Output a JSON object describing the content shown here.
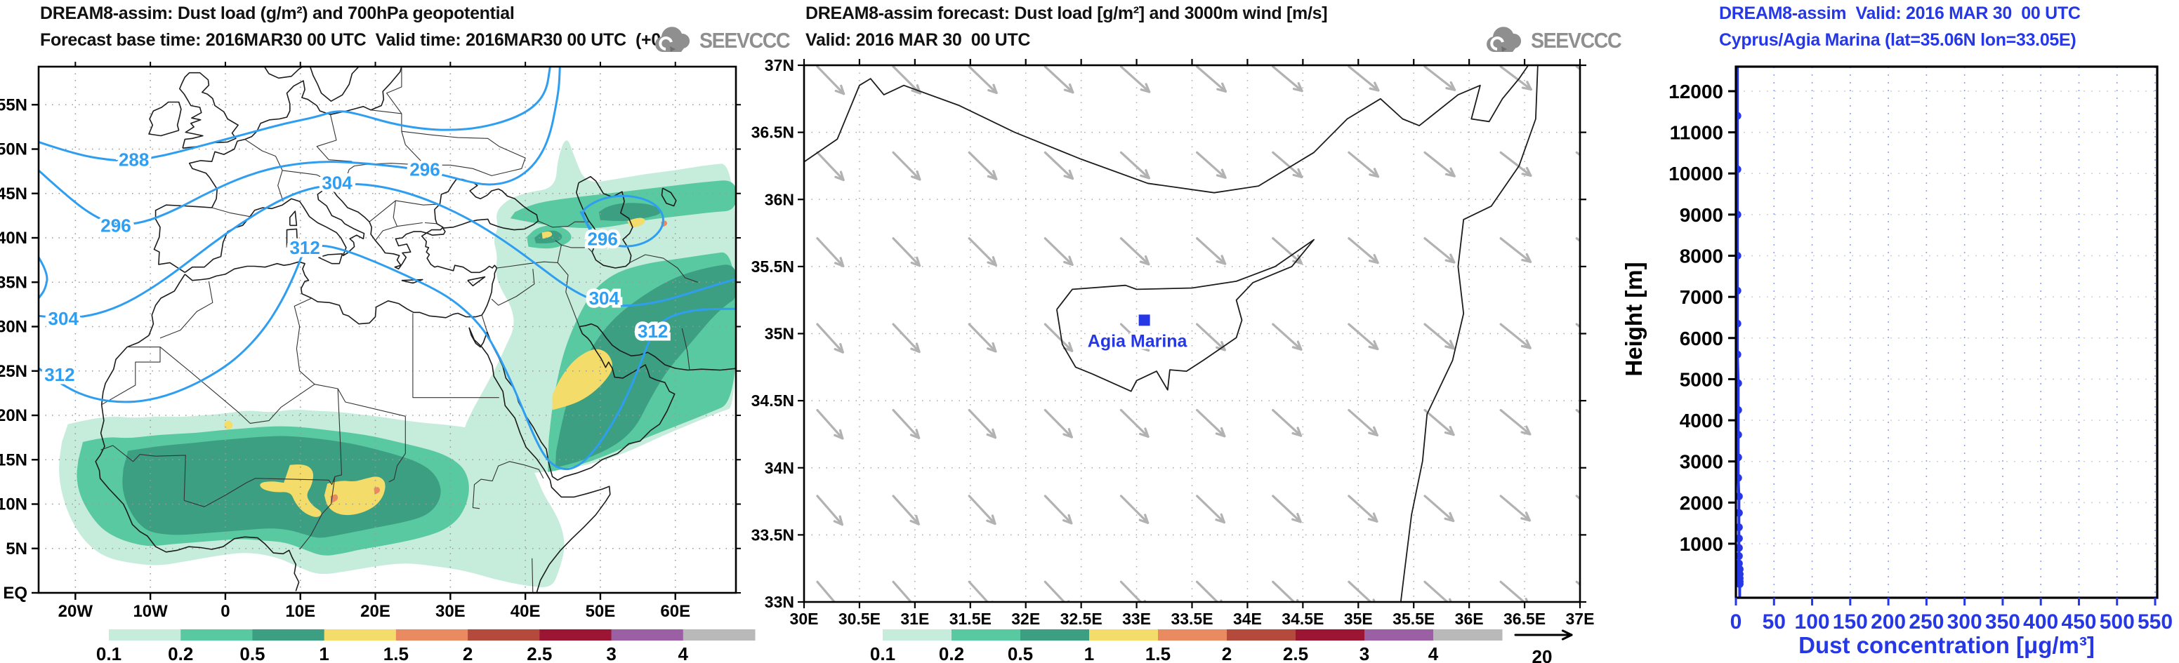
{
  "colors": {
    "contour_blue": "#2f9ef0",
    "profile_blue": "#2638e6",
    "coast": "#1c1c1c",
    "border": "#333333",
    "wind_gray": "#b2b2b2",
    "grid_gray": "#9a9a9a",
    "logo_gray": "#8f8f8f"
  },
  "colorbar": {
    "labels": [
      "0.1",
      "0.2",
      "0.5",
      "1",
      "1.5",
      "2",
      "2.5",
      "3",
      "4"
    ],
    "colors": [
      "#c6ecdc",
      "#59c9a2",
      "#3d9f82",
      "#f3dc6a",
      "#ea8a61",
      "#b34a3c",
      "#9c1533",
      "#9b5fa4",
      "#b9b9b9"
    ]
  },
  "left_panel": {
    "title": "DREAM8-assim: Dust load (g/m²) and 700hPa geopotential",
    "subtitle": "Forecast base time: 2016MAR30 00 UTC  Valid time: 2016MAR30 00 UTC  (+00)",
    "logo_text": "SEEVCCC",
    "x_tick_labels": [
      "20W",
      "10W",
      "0",
      "10E",
      "20E",
      "30E",
      "40E",
      "50E",
      "60E"
    ],
    "y_tick_labels": [
      "EQ",
      "5N",
      "10N",
      "15N",
      "20N",
      "25N",
      "30N",
      "35N",
      "40N",
      "45N",
      "50N",
      "55N"
    ],
    "contour_labels": [
      {
        "text": "288",
        "lon": -12.2,
        "lat": 48.8
      },
      {
        "text": "296",
        "lon": -14.6,
        "lat": 41.4
      },
      {
        "text": "296",
        "lon": 26.6,
        "lat": 47.7
      },
      {
        "text": "304",
        "lon": 14.9,
        "lat": 46.2
      },
      {
        "text": "312",
        "lon": 10.6,
        "lat": 38.9
      },
      {
        "text": "304",
        "lon": -21.6,
        "lat": 30.9
      },
      {
        "text": "312",
        "lon": -22.1,
        "lat": 24.6
      },
      {
        "text": "296",
        "lon": 50.3,
        "lat": 39.9
      },
      {
        "text": "304",
        "lon": 50.5,
        "lat": 33.2
      },
      {
        "text": "312",
        "lon": 57.0,
        "lat": 29.5
      }
    ]
  },
  "middle_panel": {
    "title": "DREAM8-assim forecast: Dust load [g/m²] and 3000m wind [m/s]",
    "subtitle": "Valid: 2016 MAR 30  00 UTC",
    "logo_text": "SEEVCCC",
    "x_tick_labels": [
      "30E",
      "30.5E",
      "31E",
      "31.5E",
      "32E",
      "32.5E",
      "33E",
      "33.5E",
      "34E",
      "34.5E",
      "35E",
      "35.5E",
      "36E",
      "36.5E",
      "37E"
    ],
    "y_tick_labels": [
      "33N",
      "33.5N",
      "34N",
      "34.5N",
      "35N",
      "35.5N",
      "36N",
      "36.5N",
      "37N"
    ],
    "station": {
      "name": "Agia Marina",
      "lon": 33.07,
      "lat": 35.1
    },
    "wind_ref_label": "20"
  },
  "right_panel": {
    "title": "DREAM8-assim  Valid: 2016 MAR 30  00 UTC",
    "subtitle": "Cyprus/Agia Marina (lat=35.06N lon=33.05E)",
    "xlabel": "Dust concentration [μg/m³]",
    "ylabel": "Height [m]",
    "x_tick_labels": [
      "0",
      "50",
      "100",
      "150",
      "200",
      "250",
      "300",
      "350",
      "400",
      "450",
      "500",
      "550"
    ],
    "y_tick_labels": [
      "1000",
      "2000",
      "3000",
      "4000",
      "5000",
      "6000",
      "7000",
      "8000",
      "9000",
      "10000",
      "11000",
      "12000"
    ]
  },
  "chart_data": [
    {
      "type": "heatmap",
      "panel": "left",
      "title": "DREAM8-assim: Dust load (g/m²) and 700hPa geopotential",
      "xlabel": "longitude",
      "ylabel": "latitude",
      "x_ticks": [
        "20W",
        "10W",
        "0",
        "10E",
        "20E",
        "30E",
        "40E",
        "50E",
        "60E"
      ],
      "y_ticks": [
        "EQ",
        "5N",
        "10N",
        "15N",
        "20N",
        "25N",
        "30N",
        "35N",
        "40N",
        "45N",
        "50N",
        "55N"
      ],
      "dust_load_levels_g_m2": [
        0.1,
        0.2,
        0.5,
        1,
        1.5,
        2,
        2.5,
        3,
        4
      ],
      "geopotential_contours_dam": [
        288,
        296,
        304,
        312
      ],
      "notes": "Dust maxima over Sahel (Chad/Niger, >1.5 g/m²), Persian Gulf/Iran and east of Caspian; geopotential trough over E Atlantic and cutoff low near Caspian"
    },
    {
      "type": "heatmap",
      "panel": "middle",
      "title": "DREAM8-assim forecast: Dust load [g/m²] and 3000m wind [m/s]",
      "x_ticks": [
        "30E",
        "30.5E",
        "31E",
        "31.5E",
        "32E",
        "32.5E",
        "33E",
        "33.5E",
        "34E",
        "34.5E",
        "35E",
        "35.5E",
        "36E",
        "36.5E",
        "37E"
      ],
      "y_ticks": [
        "33N",
        "33.5N",
        "34N",
        "34.5N",
        "35N",
        "35.5N",
        "36N",
        "36.5N",
        "37N"
      ],
      "dust_load_levels_g_m2": [
        0.1,
        0.2,
        0.5,
        1,
        1.5,
        2,
        2.5,
        3,
        4
      ],
      "dust_load_over_domain": "below 0.1 (no shading)",
      "wind_ref_m_s": 20,
      "wind_direction": "northwesterly, toward southeast",
      "station": {
        "name": "Agia Marina",
        "lat": "35.06N",
        "lon": "33.05E"
      }
    },
    {
      "type": "line",
      "panel": "right",
      "title": "DREAM8-assim  Valid: 2016 MAR 30  00 UTC",
      "subtitle": "Cyprus/Agia Marina (lat=35.06N lon=33.05E)",
      "xlabel": "Dust concentration [μg/m³]",
      "ylabel": "Height [m]",
      "xlim": [
        0,
        550
      ],
      "ylim": [
        0,
        12600
      ],
      "x_ticks": [
        0,
        50,
        100,
        150,
        200,
        250,
        300,
        350,
        400,
        450,
        500,
        550
      ],
      "y_ticks": [
        1000,
        2000,
        3000,
        4000,
        5000,
        6000,
        7000,
        8000,
        9000,
        10000,
        11000,
        12000
      ],
      "legend_position": "none",
      "grid": true,
      "series": [
        {
          "name": "dust concentration profile",
          "points_conc_height": [
            [
              5,
              20
            ],
            [
              5,
              80
            ],
            [
              5,
              160
            ],
            [
              5,
              260
            ],
            [
              5,
              380
            ],
            [
              4,
              520
            ],
            [
              4,
              700
            ],
            [
              4,
              900
            ],
            [
              4,
              1130
            ],
            [
              4,
              1400
            ],
            [
              4,
              1750
            ],
            [
              4,
              2150
            ],
            [
              3,
              2600
            ],
            [
              3,
              3100
            ],
            [
              3,
              3650
            ],
            [
              3,
              4250
            ],
            [
              3,
              4900
            ],
            [
              2,
              5600
            ],
            [
              2,
              6350
            ],
            [
              2,
              7150
            ],
            [
              2,
              8000
            ],
            [
              2,
              9000
            ],
            [
              2,
              10100
            ],
            [
              2,
              11400
            ]
          ]
        }
      ]
    }
  ]
}
